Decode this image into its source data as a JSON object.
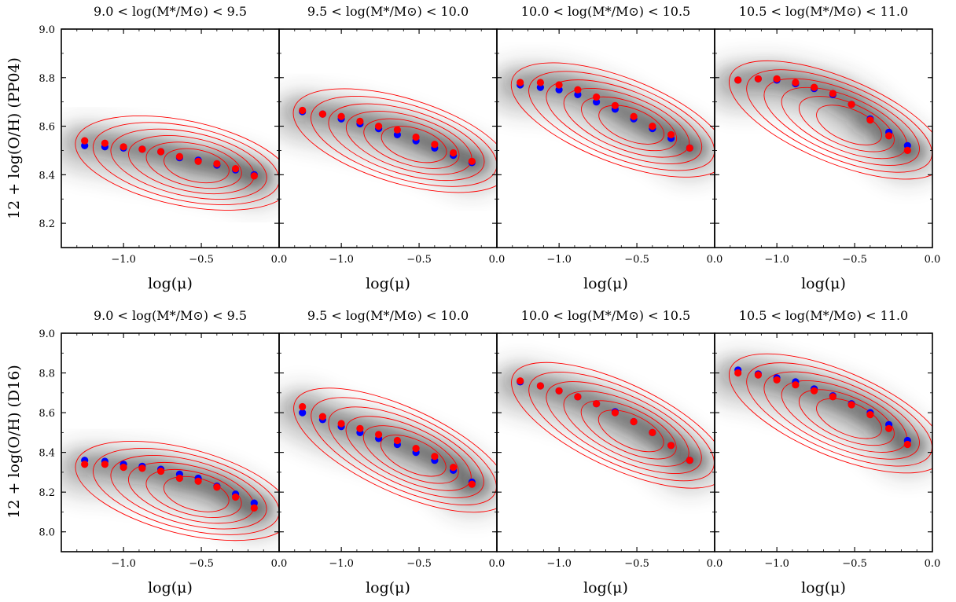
{
  "figure": {
    "x_axis_label": "log(μ)",
    "row_y_labels": [
      "12 + log(O/H) (PP04)",
      "12 + log(O/H) (D16)"
    ],
    "panel_titles": [
      {
        "lo": "9.0",
        "hi": "9.5"
      },
      {
        "lo": "9.5",
        "hi": "10.0"
      },
      {
        "lo": "10.0",
        "hi": "10.5"
      },
      {
        "lo": "10.5",
        "hi": "11.0"
      }
    ],
    "title_template": "< log(M*/M⊙) <",
    "colors": {
      "density": "#222222",
      "contour": "#ff0000",
      "series_blue": "#0000ff",
      "series_red": "#ff0000"
    }
  },
  "chart_data": [
    {
      "type": "scatter",
      "row": 0,
      "col": 0,
      "panel_title": "9.0 < log(M*/M⊙) < 9.5",
      "xlim": [
        -1.4,
        0.0
      ],
      "ylim": [
        8.1,
        9.0
      ],
      "xticks": [
        -1.0,
        -0.5,
        0.0
      ],
      "xtick_labels": [
        "−1.0",
        "−0.5",
        "0.0"
      ],
      "yticks": [
        8.2,
        8.4,
        8.6,
        8.8,
        9.0
      ],
      "ytick_labels": [
        "8.2",
        "8.4",
        "8.6",
        "8.8",
        "9.0"
      ],
      "xlabel": "log(μ)",
      "ylabel": "12 + log(O/H) (PP04)",
      "series": [
        {
          "color": "blue",
          "x": [
            -1.25,
            -1.12,
            -1.0,
            -0.88,
            -0.76,
            -0.64,
            -0.52,
            -0.4,
            -0.28,
            -0.16
          ],
          "y": [
            8.52,
            8.515,
            8.51,
            8.505,
            8.495,
            8.47,
            8.46,
            8.44,
            8.42,
            8.4
          ]
        },
        {
          "color": "red",
          "x": [
            -1.25,
            -1.12,
            -1.0,
            -0.88,
            -0.76,
            -0.64,
            -0.52,
            -0.4,
            -0.28,
            -0.16
          ],
          "y": [
            8.54,
            8.53,
            8.515,
            8.505,
            8.495,
            8.475,
            8.455,
            8.445,
            8.425,
            8.395
          ]
        }
      ]
    },
    {
      "type": "scatter",
      "row": 0,
      "col": 1,
      "panel_title": "9.5 < log(M*/M⊙) < 10.0",
      "xlim": [
        -1.4,
        0.0
      ],
      "ylim": [
        8.1,
        9.0
      ],
      "xticks": [
        -1.0,
        -0.5,
        0.0
      ],
      "xtick_labels": [
        "−1.0",
        "−0.5",
        "0.0"
      ],
      "yticks": [],
      "ytick_labels": [],
      "xlabel": "log(μ)",
      "ylabel": "",
      "series": [
        {
          "color": "blue",
          "x": [
            -1.25,
            -1.12,
            -1.0,
            -0.88,
            -0.76,
            -0.64,
            -0.52,
            -0.4,
            -0.28,
            -0.16
          ],
          "y": [
            8.66,
            8.65,
            8.63,
            8.61,
            8.59,
            8.565,
            8.54,
            8.51,
            8.48,
            8.45
          ]
        },
        {
          "color": "red",
          "x": [
            -1.25,
            -1.12,
            -1.0,
            -0.88,
            -0.76,
            -0.64,
            -0.52,
            -0.4,
            -0.28,
            -0.16
          ],
          "y": [
            8.665,
            8.65,
            8.64,
            8.62,
            8.6,
            8.585,
            8.555,
            8.525,
            8.49,
            8.455
          ]
        }
      ]
    },
    {
      "type": "scatter",
      "row": 0,
      "col": 2,
      "panel_title": "10.0 < log(M*/M⊙) < 10.5",
      "xlim": [
        -1.4,
        0.0
      ],
      "ylim": [
        8.1,
        9.0
      ],
      "xticks": [
        -1.0,
        -0.5,
        0.0
      ],
      "xtick_labels": [
        "−1.0",
        "−0.5",
        "0.0"
      ],
      "yticks": [],
      "ytick_labels": [],
      "xlabel": "log(μ)",
      "ylabel": "",
      "series": [
        {
          "color": "blue",
          "x": [
            -1.25,
            -1.12,
            -1.0,
            -0.88,
            -0.76,
            -0.64,
            -0.52,
            -0.4,
            -0.28,
            -0.16
          ],
          "y": [
            8.77,
            8.76,
            8.75,
            8.73,
            8.7,
            8.67,
            8.63,
            8.59,
            8.55,
            8.51
          ]
        },
        {
          "color": "red",
          "x": [
            -1.25,
            -1.12,
            -1.0,
            -0.88,
            -0.76,
            -0.64,
            -0.52,
            -0.4,
            -0.28,
            -0.16
          ],
          "y": [
            8.78,
            8.78,
            8.77,
            8.75,
            8.72,
            8.685,
            8.64,
            8.6,
            8.565,
            8.51
          ]
        }
      ]
    },
    {
      "type": "scatter",
      "row": 0,
      "col": 3,
      "panel_title": "10.5 < log(M*/M⊙) < 11.0",
      "xlim": [
        -1.4,
        0.0
      ],
      "ylim": [
        8.1,
        9.0
      ],
      "xticks": [
        -1.0,
        -0.5,
        0.0
      ],
      "xtick_labels": [
        "−1.0",
        "−0.5",
        "0.0"
      ],
      "yticks": [],
      "ytick_labels": [],
      "xlabel": "log(μ)",
      "ylabel": "",
      "series": [
        {
          "color": "blue",
          "x": [
            -1.25,
            -1.12,
            -1.0,
            -0.88,
            -0.76,
            -0.64,
            -0.52,
            -0.4,
            -0.28,
            -0.16
          ],
          "y": [
            8.79,
            8.795,
            8.79,
            8.775,
            8.755,
            8.73,
            8.69,
            8.63,
            8.575,
            8.52
          ]
        },
        {
          "color": "red",
          "x": [
            -1.25,
            -1.12,
            -1.0,
            -0.88,
            -0.76,
            -0.64,
            -0.52,
            -0.4,
            -0.28,
            -0.16
          ],
          "y": [
            8.79,
            8.795,
            8.795,
            8.78,
            8.76,
            8.735,
            8.69,
            8.625,
            8.56,
            8.5
          ]
        }
      ]
    },
    {
      "type": "scatter",
      "row": 1,
      "col": 0,
      "panel_title": "9.0 < log(M*/M⊙) < 9.5",
      "xlim": [
        -1.4,
        0.0
      ],
      "ylim": [
        7.9,
        9.0
      ],
      "xticks": [
        -1.0,
        -0.5,
        0.0
      ],
      "xtick_labels": [
        "−1.0",
        "−0.5",
        "0.0"
      ],
      "yticks": [
        8.0,
        8.2,
        8.4,
        8.6,
        8.8,
        9.0
      ],
      "ytick_labels": [
        "8.0",
        "8.2",
        "8.4",
        "8.6",
        "8.8",
        "9.0"
      ],
      "xlabel": "log(μ)",
      "ylabel": "12 + log(O/H) (D16)",
      "series": [
        {
          "color": "blue",
          "x": [
            -1.25,
            -1.12,
            -1.0,
            -0.88,
            -0.76,
            -0.64,
            -0.52,
            -0.4,
            -0.28,
            -0.16
          ],
          "y": [
            8.36,
            8.355,
            8.34,
            8.33,
            8.315,
            8.29,
            8.27,
            8.23,
            8.19,
            8.145
          ]
        },
        {
          "color": "red",
          "x": [
            -1.25,
            -1.12,
            -1.0,
            -0.88,
            -0.76,
            -0.64,
            -0.52,
            -0.4,
            -0.28,
            -0.16
          ],
          "y": [
            8.34,
            8.34,
            8.325,
            8.32,
            8.305,
            8.27,
            8.255,
            8.225,
            8.175,
            8.12
          ]
        }
      ]
    },
    {
      "type": "scatter",
      "row": 1,
      "col": 1,
      "panel_title": "9.5 < log(M*/M⊙) < 10.0",
      "xlim": [
        -1.4,
        0.0
      ],
      "ylim": [
        7.9,
        9.0
      ],
      "xticks": [
        -1.0,
        -0.5,
        0.0
      ],
      "xtick_labels": [
        "−1.0",
        "−0.5",
        "0.0"
      ],
      "yticks": [],
      "ytick_labels": [],
      "xlabel": "log(μ)",
      "ylabel": "",
      "series": [
        {
          "color": "blue",
          "x": [
            -1.25,
            -1.12,
            -1.0,
            -0.88,
            -0.76,
            -0.64,
            -0.52,
            -0.4,
            -0.28,
            -0.16
          ],
          "y": [
            8.6,
            8.565,
            8.53,
            8.5,
            8.47,
            8.44,
            8.4,
            8.36,
            8.31,
            8.25
          ]
        },
        {
          "color": "red",
          "x": [
            -1.25,
            -1.12,
            -1.0,
            -0.88,
            -0.76,
            -0.64,
            -0.52,
            -0.4,
            -0.28,
            -0.16
          ],
          "y": [
            8.63,
            8.58,
            8.545,
            8.52,
            8.49,
            8.46,
            8.42,
            8.38,
            8.325,
            8.24
          ]
        }
      ]
    },
    {
      "type": "scatter",
      "row": 1,
      "col": 2,
      "panel_title": "10.0 < log(M*/M⊙) < 10.5",
      "xlim": [
        -1.4,
        0.0
      ],
      "ylim": [
        7.9,
        9.0
      ],
      "xticks": [
        -1.0,
        -0.5,
        0.0
      ],
      "xtick_labels": [
        "−1.0",
        "−0.5",
        "0.0"
      ],
      "yticks": [],
      "ytick_labels": [],
      "xlabel": "log(μ)",
      "ylabel": "",
      "series": [
        {
          "color": "blue",
          "x": [
            -1.25,
            -1.12,
            -1.0,
            -0.88,
            -0.76,
            -0.64,
            -0.52,
            -0.4,
            -0.28,
            -0.16
          ],
          "y": [
            8.755,
            8.735,
            8.71,
            8.68,
            8.645,
            8.605,
            8.555,
            8.5,
            8.435,
            8.36
          ]
        },
        {
          "color": "red",
          "x": [
            -1.25,
            -1.12,
            -1.0,
            -0.88,
            -0.76,
            -0.64,
            -0.52,
            -0.4,
            -0.28,
            -0.16
          ],
          "y": [
            8.76,
            8.735,
            8.71,
            8.68,
            8.645,
            8.6,
            8.555,
            8.5,
            8.435,
            8.36
          ]
        }
      ]
    },
    {
      "type": "scatter",
      "row": 1,
      "col": 3,
      "panel_title": "10.5 < log(M*/M⊙) < 11.0",
      "xlim": [
        -1.4,
        0.0
      ],
      "ylim": [
        7.9,
        9.0
      ],
      "xticks": [
        -1.0,
        -0.5,
        0.0
      ],
      "xtick_labels": [
        "−1.0",
        "−0.5",
        "0.0"
      ],
      "yticks": [],
      "ytick_labels": [],
      "xlabel": "log(μ)",
      "ylabel": "",
      "series": [
        {
          "color": "blue",
          "x": [
            -1.25,
            -1.12,
            -1.0,
            -0.88,
            -0.76,
            -0.64,
            -0.52,
            -0.4,
            -0.28,
            -0.16
          ],
          "y": [
            8.815,
            8.795,
            8.775,
            8.755,
            8.72,
            8.685,
            8.645,
            8.6,
            8.54,
            8.46
          ]
        },
        {
          "color": "red",
          "x": [
            -1.25,
            -1.12,
            -1.0,
            -0.88,
            -0.76,
            -0.64,
            -0.52,
            -0.4,
            -0.28,
            -0.16
          ],
          "y": [
            8.8,
            8.79,
            8.765,
            8.74,
            8.71,
            8.68,
            8.64,
            8.59,
            8.52,
            8.44
          ]
        }
      ]
    }
  ]
}
